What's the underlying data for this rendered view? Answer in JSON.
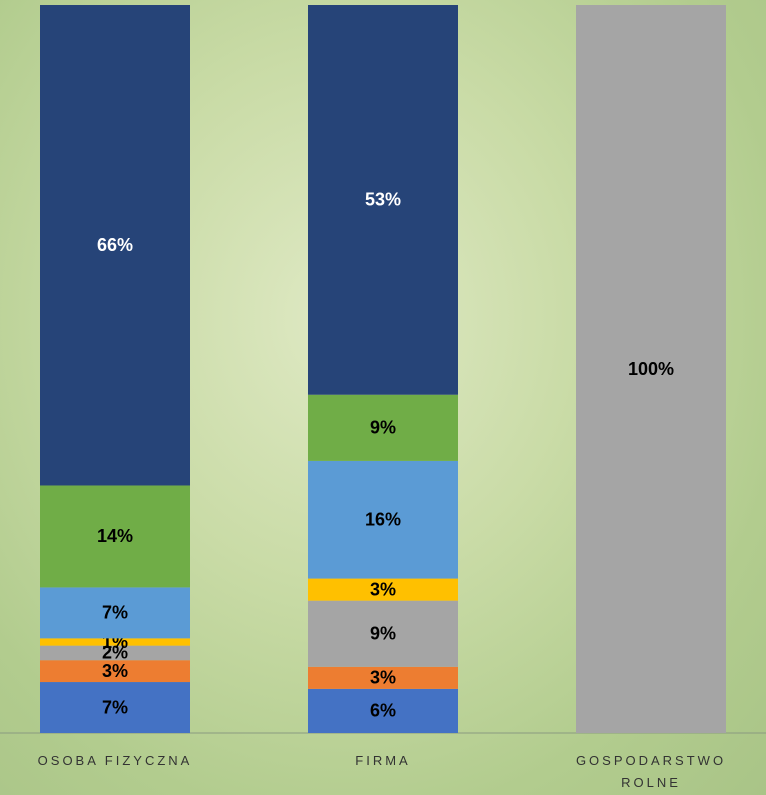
{
  "chart_data": {
    "type": "stacked_bar",
    "categories": [
      "OSOBA FIZYCZNA",
      "FIRMA",
      "GOSPODARSTWO ROLNE"
    ],
    "series": [
      {
        "color": "#4472c4",
        "values": [
          7,
          6,
          null
        ],
        "value_labels": [
          "7%",
          "6%",
          null
        ]
      },
      {
        "color": "#ed7d31",
        "values": [
          3,
          3,
          null
        ],
        "value_labels": [
          "3%",
          "3%",
          null
        ]
      },
      {
        "color": "#a5a5a5",
        "values": [
          2,
          9,
          100
        ],
        "value_labels": [
          "2%",
          "9%",
          "100%"
        ]
      },
      {
        "color": "#ffc000",
        "values": [
          1,
          3,
          null
        ],
        "value_labels": [
          "1%",
          "3%",
          null
        ]
      },
      {
        "color": "#5b9bd5",
        "values": [
          7,
          16,
          null
        ],
        "value_labels": [
          "7%",
          "16%",
          null
        ]
      },
      {
        "color": "#70ad47",
        "values": [
          14,
          9,
          null
        ],
        "value_labels": [
          "14%",
          "9%",
          null
        ]
      },
      {
        "color": "#264478",
        "values": [
          66,
          53,
          null
        ],
        "value_labels": [
          "66%",
          "53%",
          null
        ]
      }
    ]
  }
}
